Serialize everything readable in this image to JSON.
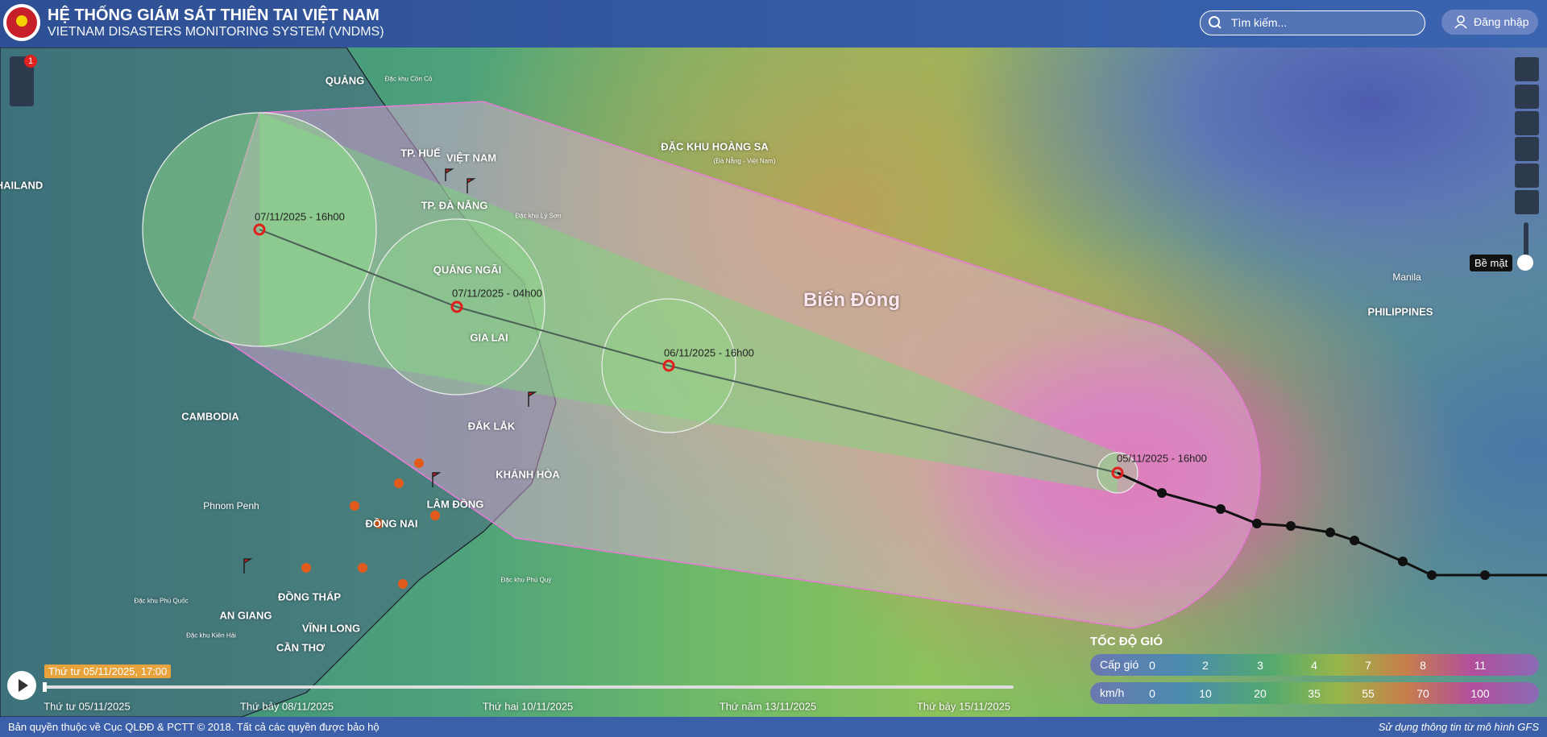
{
  "header": {
    "title": "HỆ THỐNG GIÁM SÁT THIÊN TAI VIỆT NAM",
    "subtitle": "VIETNAM DISASTERS MONITORING SYSTEM (VNDMS)",
    "search_placeholder": "Tìm kiếm...",
    "login": "Đăng nhập"
  },
  "toolbar": {
    "badge": 1,
    "layer": "Bề mặt"
  },
  "map": {
    "sea_title": "Biển Đông",
    "labels": [
      "HAILAND",
      "CAMBODIA",
      "Phnom Penh",
      "VIỆT NAM",
      "QUẢNG NGÃI",
      "GIA LAI",
      "ĐẮK LẮK",
      "KHÁNH HÒA",
      "LÂM ĐỒNG",
      "ĐỒNG NAI",
      "ĐỒNG THÁP",
      "AN GIANG",
      "VĨNH LONG",
      "CẦN THƠ",
      "TP. ĐÀ NẴNG",
      "TP. HUẾ",
      "QUẢNG",
      "ĐẶC KHU HOÀNG SA",
      "(Đà Nẵng - Việt Nam)",
      "PHILIPPINES",
      "Manila",
      "Đặc khu Lý Sơn",
      "Đặc khu Phú Quý",
      "Đặc khu Phú Quốc",
      "Đặc khu Kiên Hải",
      "Đặc khu Cồn Cỏ"
    ]
  },
  "forecast": {
    "points": [
      "07/11/2025 - 16h00",
      "07/11/2025 - 04h00",
      "06/11/2025 - 16h00",
      "05/11/2025 - 16h00"
    ]
  },
  "legend": {
    "title": "TỐC ĐỘ GIÓ",
    "rows": [
      {
        "label": "Cấp gió",
        "values": [
          0,
          2,
          3,
          4,
          7,
          8,
          11
        ]
      },
      {
        "label": "km/h",
        "values": [
          0,
          10,
          20,
          35,
          55,
          70,
          100
        ]
      }
    ]
  },
  "timeline": {
    "current": "Thứ tư 05/11/2025, 17:00",
    "dates": [
      "Thứ tư 05/11/2025",
      "Thứ bảy 08/11/2025",
      "Thứ hai 10/11/2025",
      "Thứ năm 13/11/2025",
      "Thứ bảy 15/11/2025"
    ]
  },
  "footer": {
    "copyright": "Bản quyền thuộc về Cục QLĐĐ & PCTT © 2018. Tất cả các quyền được bảo hộ",
    "source": "Sử dụng thông tin từ mô hình GFS"
  }
}
